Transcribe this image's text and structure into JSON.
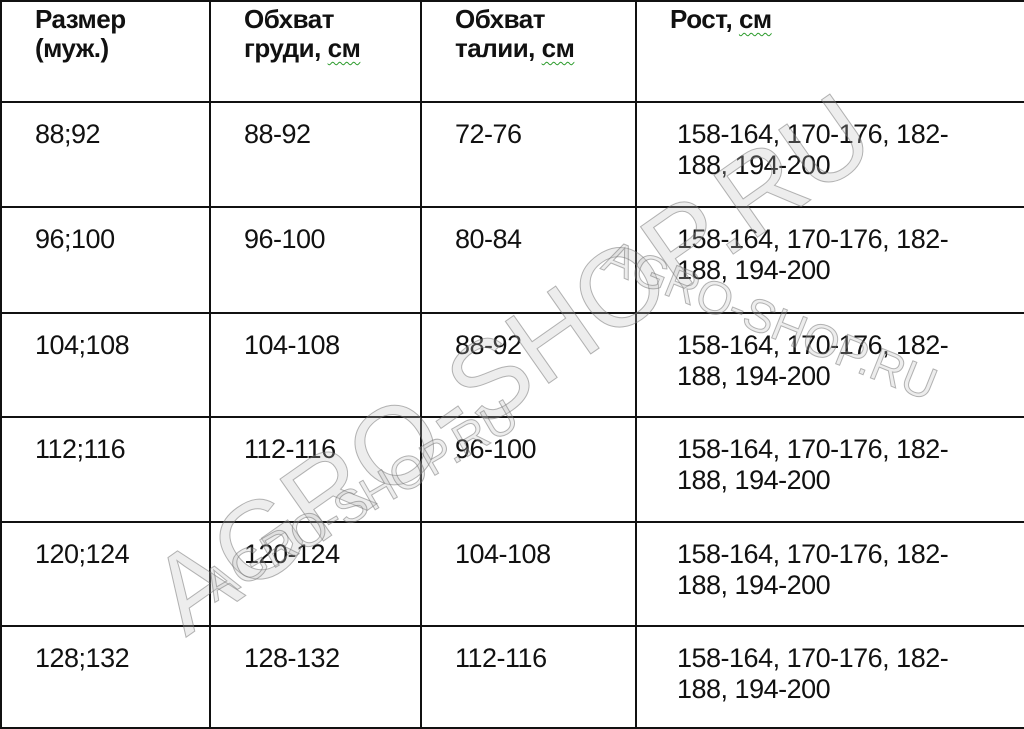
{
  "headers": [
    {
      "line1": "Размер",
      "line2": "(муж.)"
    },
    {
      "line1": "Обхват",
      "line2": "груди,",
      "unit": "см"
    },
    {
      "line1": "Обхват",
      "line2": "талии,",
      "unit": "см"
    },
    {
      "line1": "Рост,",
      "unit": "см"
    }
  ],
  "rows": [
    {
      "size": "88;92",
      "chest": "88-92",
      "waist": "72-76",
      "height_l1": "158-164, 170-176, 182-",
      "height_l2": "188, 194-200"
    },
    {
      "size": "96;100",
      "chest": "96-100",
      "waist": "80-84",
      "height_l1": "158-164, 170-176, 182-",
      "height_l2": "188, 194-200"
    },
    {
      "size": "104;108",
      "chest": "104-108",
      "waist": "88-92",
      "height_l1": "158-164, 170-176, 182-",
      "height_l2": "188, 194-200"
    },
    {
      "size": "112;116",
      "chest": "112-116",
      "waist": "96-100",
      "height_l1": "158-164, 170-176, 182-",
      "height_l2": "188, 194-200"
    },
    {
      "size": "120;124",
      "chest": "120-124",
      "waist": "104-108",
      "height_l1": "158-164, 170-176, 182-",
      "height_l2": "188, 194-200"
    },
    {
      "size": "128;132",
      "chest": "128-132",
      "waist": "112-116",
      "height_l1": "158-164, 170-176, 182-",
      "height_l2": "188, 194-200"
    }
  ],
  "watermark": "AGRO-SHOP.RU"
}
